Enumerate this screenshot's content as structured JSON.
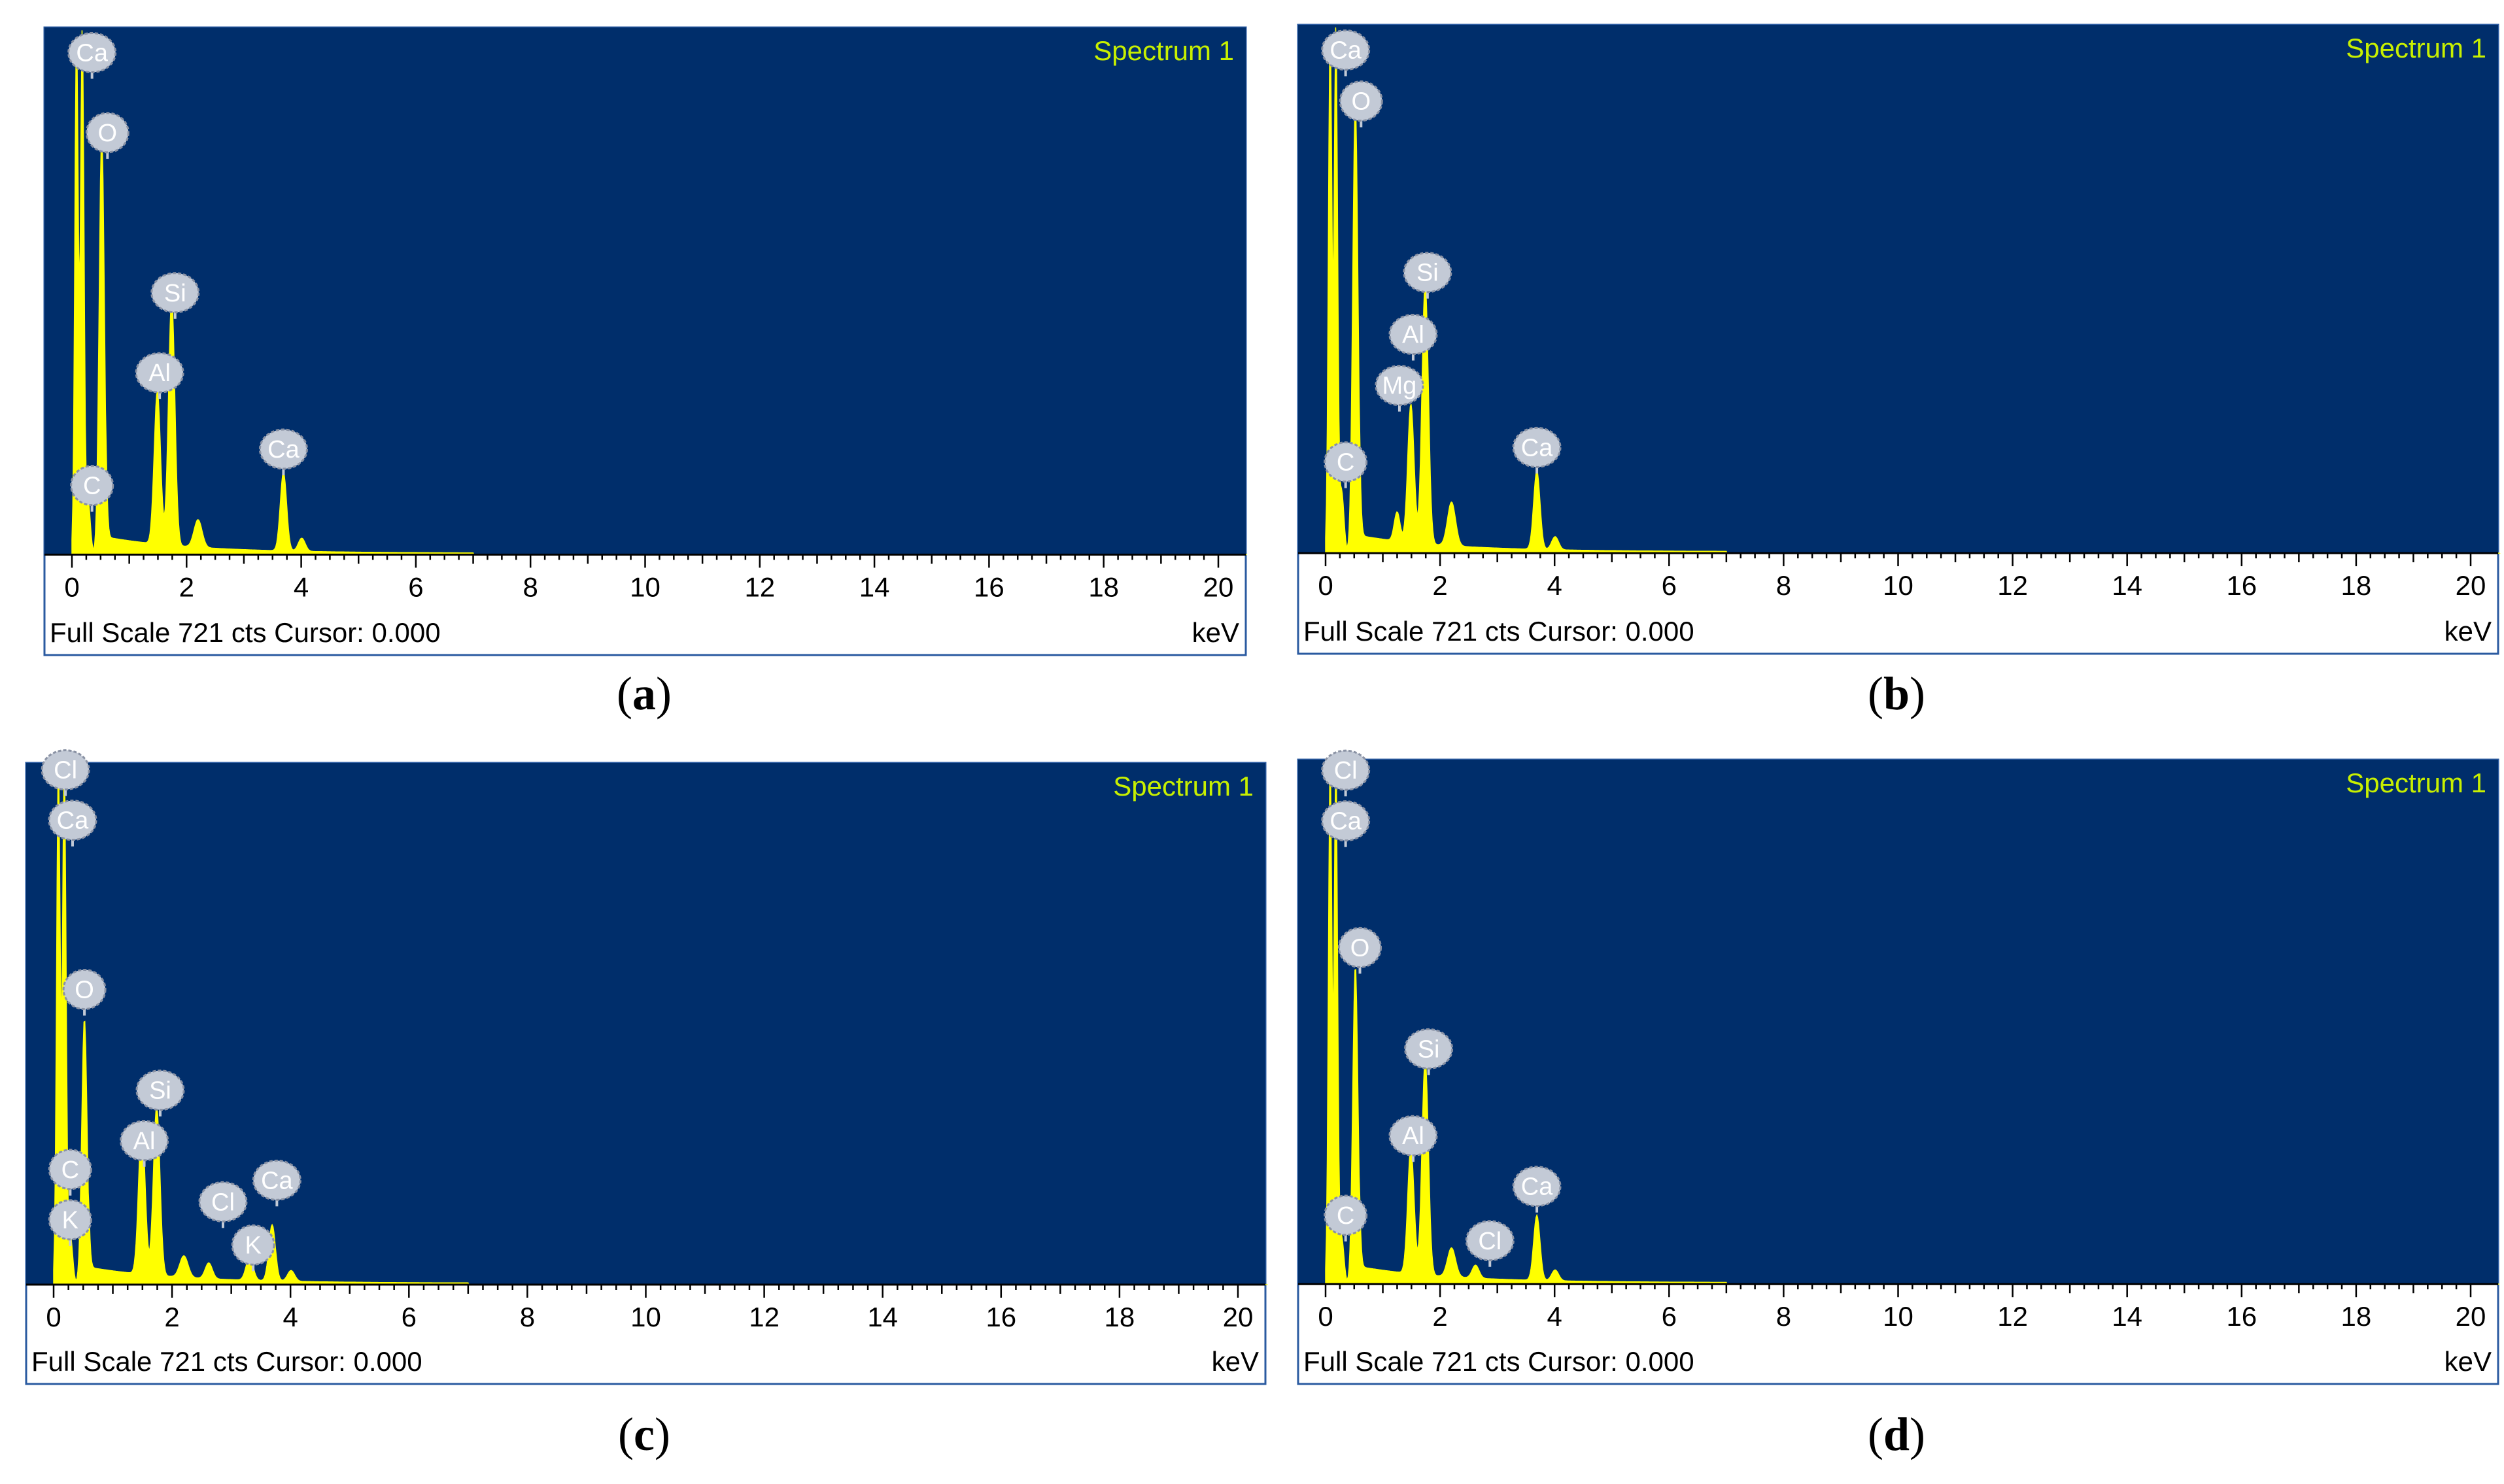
{
  "colors": {
    "plot_bg": "#002e6b",
    "spectrum": "#ffff00",
    "title_text": "#c8f000",
    "label_fill": "#c3cad6",
    "label_stroke": "#8a92a4",
    "axis": "#000000"
  },
  "panels": [
    {
      "caption_letter": "a",
      "chart_data": {
        "type": "area",
        "title": "Spectrum 1",
        "xlabel": "keV",
        "ylabel": "",
        "status_text": "Full Scale 721 cts Cursor: 0.000",
        "xlim": [
          0,
          20.5
        ],
        "ylim": [
          0,
          721
        ],
        "x_ticks": [
          "0",
          "2",
          "4",
          "6",
          "8",
          "10",
          "12",
          "14",
          "16",
          "18",
          "20"
        ],
        "peaks": [
          {
            "x": 0.08,
            "y": 721,
            "w": 0.03
          },
          {
            "x": 0.18,
            "y": 721,
            "w": 0.03
          },
          {
            "x": 0.28,
            "y": 75,
            "w": 0.04
          },
          {
            "x": 0.52,
            "y": 580,
            "w": 0.045
          },
          {
            "x": 1.49,
            "y": 210,
            "w": 0.055
          },
          {
            "x": 1.74,
            "y": 340,
            "w": 0.055
          },
          {
            "x": 2.2,
            "y": 38,
            "w": 0.07
          },
          {
            "x": 3.69,
            "y": 108,
            "w": 0.055
          },
          {
            "x": 4.01,
            "y": 18,
            "w": 0.06
          }
        ],
        "element_labels": [
          {
            "text": "Ca",
            "x": 0.35,
            "y": 690
          },
          {
            "text": "O",
            "x": 0.62,
            "y": 580
          },
          {
            "text": "Si",
            "x": 1.8,
            "y": 360
          },
          {
            "text": "Al",
            "x": 1.53,
            "y": 250
          },
          {
            "text": "Ca",
            "x": 3.69,
            "y": 145
          },
          {
            "text": "C",
            "x": 0.35,
            "y": 95
          }
        ]
      }
    },
    {
      "caption_letter": "b",
      "chart_data": {
        "type": "area",
        "title": "Spectrum 1",
        "xlabel": "keV",
        "ylabel": "",
        "status_text": "Full Scale 721 cts Cursor: 0.000",
        "xlim": [
          0,
          20.5
        ],
        "ylim": [
          0,
          721
        ],
        "x_ticks": [
          "0",
          "2",
          "4",
          "6",
          "8",
          "10",
          "12",
          "14",
          "16",
          "18",
          "20"
        ],
        "peaks": [
          {
            "x": 0.08,
            "y": 721,
            "w": 0.03
          },
          {
            "x": 0.18,
            "y": 721,
            "w": 0.03
          },
          {
            "x": 0.28,
            "y": 85,
            "w": 0.04
          },
          {
            "x": 0.52,
            "y": 620,
            "w": 0.045
          },
          {
            "x": 1.25,
            "y": 40,
            "w": 0.05
          },
          {
            "x": 1.49,
            "y": 190,
            "w": 0.055
          },
          {
            "x": 1.74,
            "y": 360,
            "w": 0.055
          },
          {
            "x": 2.2,
            "y": 60,
            "w": 0.07
          },
          {
            "x": 3.69,
            "y": 108,
            "w": 0.055
          },
          {
            "x": 4.01,
            "y": 18,
            "w": 0.06
          }
        ],
        "element_labels": [
          {
            "text": "Ca",
            "x": 0.35,
            "y": 690
          },
          {
            "text": "O",
            "x": 0.62,
            "y": 620
          },
          {
            "text": "Si",
            "x": 1.78,
            "y": 385
          },
          {
            "text": "Al",
            "x": 1.53,
            "y": 300
          },
          {
            "text": "Mg",
            "x": 1.29,
            "y": 230
          },
          {
            "text": "Ca",
            "x": 3.69,
            "y": 145
          },
          {
            "text": "C",
            "x": 0.35,
            "y": 125
          }
        ]
      }
    },
    {
      "caption_letter": "c",
      "chart_data": {
        "type": "area",
        "title": "Spectrum 1",
        "xlabel": "keV",
        "ylabel": "",
        "status_text": "Full Scale 721 cts Cursor: 0.000",
        "xlim": [
          0,
          20.5
        ],
        "ylim": [
          0,
          721
        ],
        "x_ticks": [
          "0",
          "2",
          "4",
          "6",
          "8",
          "10",
          "12",
          "14",
          "16",
          "18",
          "20"
        ],
        "peaks": [
          {
            "x": 0.08,
            "y": 721,
            "w": 0.03
          },
          {
            "x": 0.18,
            "y": 721,
            "w": 0.03
          },
          {
            "x": 0.28,
            "y": 70,
            "w": 0.04
          },
          {
            "x": 0.52,
            "y": 370,
            "w": 0.045
          },
          {
            "x": 1.49,
            "y": 210,
            "w": 0.055
          },
          {
            "x": 1.74,
            "y": 235,
            "w": 0.055
          },
          {
            "x": 2.2,
            "y": 30,
            "w": 0.07
          },
          {
            "x": 2.62,
            "y": 22,
            "w": 0.06
          },
          {
            "x": 3.31,
            "y": 32,
            "w": 0.06
          },
          {
            "x": 3.69,
            "y": 78,
            "w": 0.055
          },
          {
            "x": 4.01,
            "y": 15,
            "w": 0.06
          }
        ],
        "element_labels": [
          {
            "text": "Cl",
            "x": 0.2,
            "y": 715
          },
          {
            "text": "Ca",
            "x": 0.32,
            "y": 645
          },
          {
            "text": "O",
            "x": 0.52,
            "y": 410
          },
          {
            "text": "Si",
            "x": 1.8,
            "y": 270
          },
          {
            "text": "Al",
            "x": 1.53,
            "y": 200
          },
          {
            "text": "C",
            "x": 0.28,
            "y": 160
          },
          {
            "text": "Cl",
            "x": 2.86,
            "y": 115
          },
          {
            "text": "Ca",
            "x": 3.77,
            "y": 145
          },
          {
            "text": "K",
            "x": 0.28,
            "y": 90
          },
          {
            "text": "K",
            "x": 3.37,
            "y": 55
          }
        ]
      }
    },
    {
      "caption_letter": "d",
      "chart_data": {
        "type": "area",
        "title": "Spectrum 1",
        "xlabel": "keV",
        "ylabel": "",
        "status_text": "Full Scale 721 cts Cursor: 0.000",
        "xlim": [
          0,
          20.5
        ],
        "ylim": [
          0,
          721
        ],
        "x_ticks": [
          "0",
          "2",
          "4",
          "6",
          "8",
          "10",
          "12",
          "14",
          "16",
          "18",
          "20"
        ],
        "peaks": [
          {
            "x": 0.08,
            "y": 721,
            "w": 0.03
          },
          {
            "x": 0.18,
            "y": 721,
            "w": 0.03
          },
          {
            "x": 0.28,
            "y": 65,
            "w": 0.04
          },
          {
            "x": 0.52,
            "y": 440,
            "w": 0.045
          },
          {
            "x": 1.49,
            "y": 175,
            "w": 0.055
          },
          {
            "x": 1.74,
            "y": 300,
            "w": 0.055
          },
          {
            "x": 2.2,
            "y": 40,
            "w": 0.07
          },
          {
            "x": 2.62,
            "y": 18,
            "w": 0.06
          },
          {
            "x": 3.69,
            "y": 90,
            "w": 0.055
          },
          {
            "x": 4.01,
            "y": 15,
            "w": 0.06
          }
        ],
        "element_labels": [
          {
            "text": "Cl",
            "x": 0.35,
            "y": 710
          },
          {
            "text": "Ca",
            "x": 0.35,
            "y": 640
          },
          {
            "text": "O",
            "x": 0.6,
            "y": 465
          },
          {
            "text": "Si",
            "x": 1.8,
            "y": 325
          },
          {
            "text": "Al",
            "x": 1.53,
            "y": 205
          },
          {
            "text": "Ca",
            "x": 3.69,
            "y": 135
          },
          {
            "text": "Cl",
            "x": 2.87,
            "y": 60
          },
          {
            "text": "C",
            "x": 0.35,
            "y": 95
          }
        ]
      }
    }
  ]
}
